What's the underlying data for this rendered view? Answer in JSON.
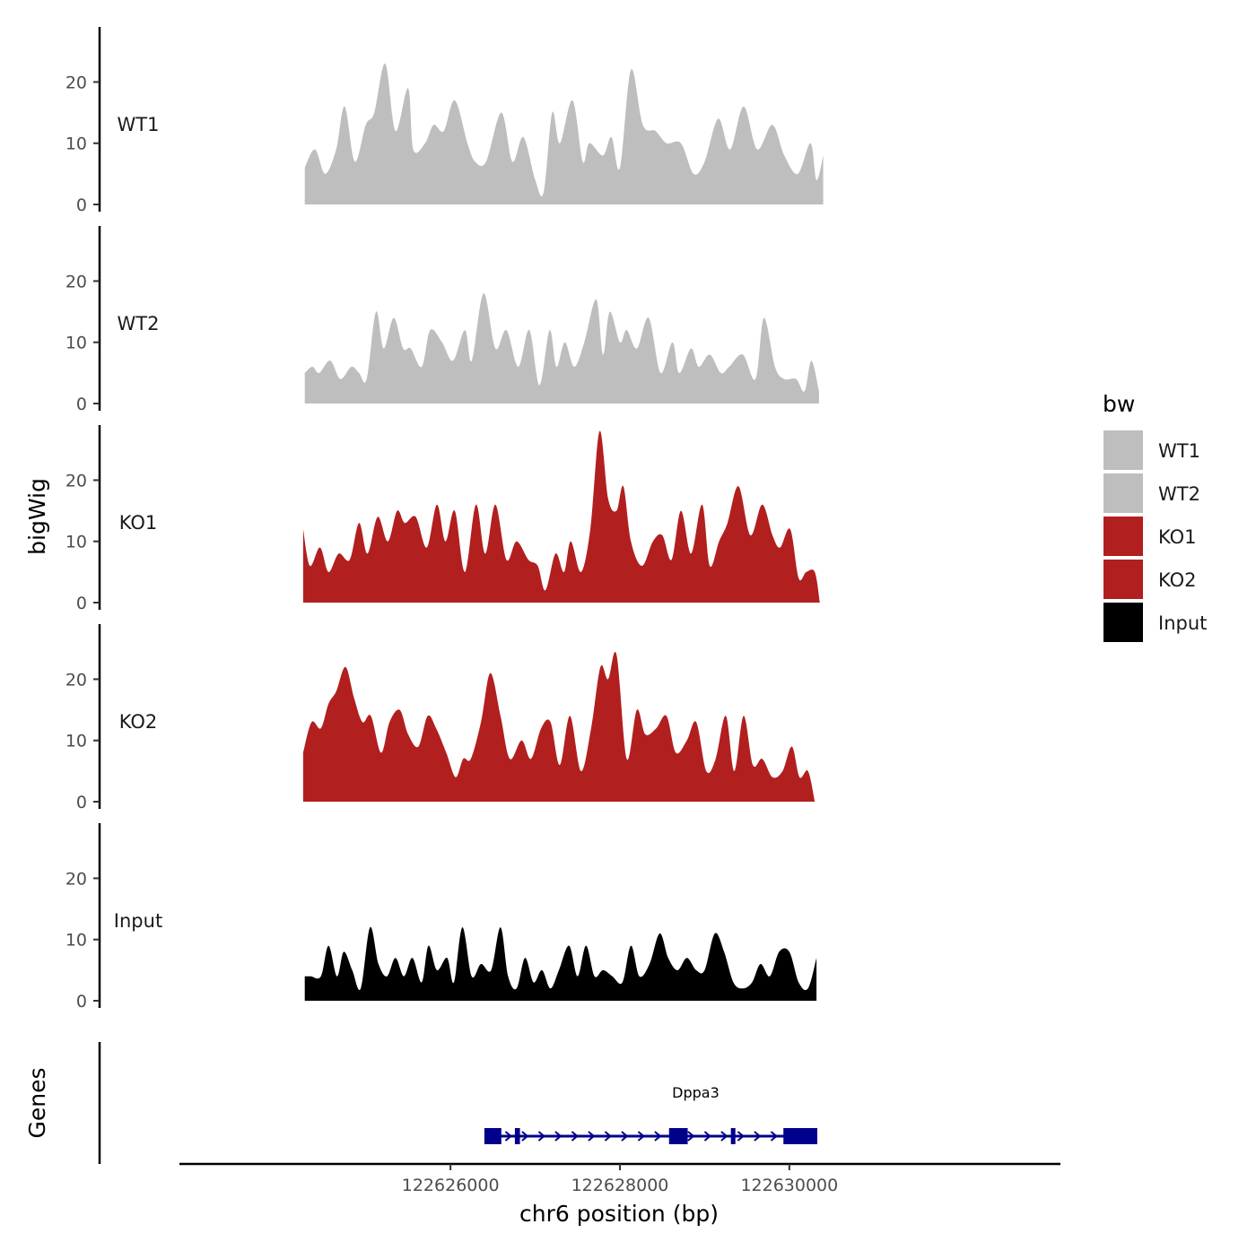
{
  "chart_data": {
    "type": "area",
    "title": "",
    "xlabel": "chr6 position (bp)",
    "ylabel": "bigWig",
    "genes_axis_label": "Genes",
    "xlim": [
      122622800,
      122633200
    ],
    "ylim": [
      0,
      29
    ],
    "x_ticks": [
      122626000,
      122628000,
      122630000
    ],
    "x_tick_labels": [
      "122626000",
      "122628000",
      "122630000"
    ],
    "y_ticks": [
      0,
      10,
      20
    ],
    "y_tick_labels": [
      "0",
      "10",
      "20"
    ],
    "legend": {
      "title": "bw",
      "placement": "right",
      "entries": [
        {
          "label": "WT1",
          "color": "#bebebe"
        },
        {
          "label": "WT2",
          "color": "#bebebe"
        },
        {
          "label": "KO1",
          "color": "#b21f1f"
        },
        {
          "label": "KO2",
          "color": "#b21f1f"
        },
        {
          "label": "Input",
          "color": "#000000"
        }
      ]
    },
    "series": [
      {
        "name": "WT1",
        "color": "#bebebe",
        "x": [
          122624280,
          122624400,
          122624520,
          122624650,
          122624750,
          122624870,
          122625000,
          122625100,
          122625230,
          122625350,
          122625500,
          122625560,
          122625700,
          122625800,
          122625920,
          122626050,
          122626200,
          122626290,
          122626420,
          122626600,
          122626730,
          122626860,
          122627000,
          122627100,
          122627200,
          122627290,
          122627440,
          122627560,
          122627640,
          122627800,
          122627900,
          122628000,
          122628130,
          122628270,
          122628420,
          122628550,
          122628720,
          122628870,
          122629000,
          122629160,
          122629300,
          122629460,
          122629620,
          122629800,
          122629940,
          122630100,
          122630250,
          122630320,
          122630400
        ],
        "values": [
          6,
          9,
          5,
          9,
          16,
          7,
          13,
          15,
          23,
          12,
          19,
          9,
          10,
          13,
          12,
          17,
          10,
          7,
          7,
          15,
          7,
          11,
          4,
          2,
          15,
          10,
          17,
          7,
          10,
          8,
          11,
          6,
          22,
          13,
          12,
          10,
          10,
          5,
          7,
          14,
          9,
          16,
          9,
          13,
          8,
          5,
          10,
          4,
          8
        ]
      },
      {
        "name": "WT2",
        "color": "#bebebe",
        "x": [
          122624280,
          122624370,
          122624450,
          122624580,
          122624700,
          122624830,
          122624920,
          122625010,
          122625120,
          122625210,
          122625330,
          122625440,
          122625530,
          122625660,
          122625760,
          122625900,
          122626030,
          122626170,
          122626250,
          122626390,
          122626530,
          122626660,
          122626800,
          122626930,
          122627050,
          122627170,
          122627250,
          122627350,
          122627460,
          122627580,
          122627720,
          122627800,
          122627880,
          122628000,
          122628080,
          122628200,
          122628340,
          122628480,
          122628620,
          122628700,
          122628840,
          122628930,
          122629060,
          122629190,
          122629290,
          122629450,
          122629600,
          122629700,
          122629830,
          122629940,
          122630080,
          122630180,
          122630260,
          122630350
        ],
        "values": [
          5,
          6,
          5,
          7,
          4,
          6,
          5,
          4,
          15,
          9,
          14,
          9,
          9,
          6,
          12,
          10,
          7,
          12,
          7,
          18,
          9,
          12,
          6,
          12,
          3,
          12,
          6,
          10,
          6,
          10,
          17,
          8,
          15,
          10,
          12,
          9,
          14,
          5,
          10,
          5,
          9,
          6,
          8,
          5,
          6,
          8,
          4,
          14,
          6,
          4,
          4,
          2,
          7,
          2
        ]
      },
      {
        "name": "KO1",
        "color": "#b21f1f",
        "x": [
          122624260,
          122624340,
          122624460,
          122624560,
          122624680,
          122624810,
          122624920,
          122625020,
          122625140,
          122625260,
          122625370,
          122625460,
          122625590,
          122625720,
          122625840,
          122625940,
          122626050,
          122626170,
          122626300,
          122626410,
          122626530,
          122626660,
          122626780,
          122626920,
          122627030,
          122627120,
          122627240,
          122627340,
          122627420,
          122627540,
          122627650,
          122627760,
          122627860,
          122627960,
          122628040,
          122628130,
          122628260,
          122628390,
          122628500,
          122628610,
          122628720,
          122628840,
          122628970,
          122629060,
          122629170,
          122629270,
          122629400,
          122629540,
          122629680,
          122629800,
          122629890,
          122630010,
          122630110,
          122630200,
          122630300,
          122630360
        ],
        "values": [
          12,
          6,
          9,
          5,
          8,
          7,
          13,
          8,
          14,
          10,
          15,
          13,
          14,
          9,
          16,
          10,
          15,
          5,
          16,
          8,
          16,
          7,
          10,
          7,
          6,
          2,
          8,
          5,
          10,
          5,
          12,
          28,
          17,
          15,
          19,
          10,
          6,
          10,
          11,
          7,
          15,
          8,
          16,
          6,
          10,
          13,
          19,
          11,
          16,
          11,
          9,
          12,
          4,
          5,
          5,
          0
        ]
      },
      {
        "name": "KO2",
        "color": "#b21f1f",
        "x": [
          122624260,
          122624360,
          122624470,
          122624560,
          122624650,
          122624760,
          122624860,
          122624960,
          122625060,
          122625180,
          122625280,
          122625400,
          122625500,
          122625620,
          122625730,
          122625830,
          122625950,
          122626060,
          122626150,
          122626240,
          122626360,
          122626470,
          122626590,
          122626700,
          122626840,
          122626950,
          122627070,
          122627180,
          122627290,
          122627410,
          122627540,
          122627660,
          122627770,
          122627860,
          122627960,
          122628080,
          122628200,
          122628300,
          122628430,
          122628550,
          122628660,
          122628790,
          122628900,
          122629020,
          122629130,
          122629250,
          122629350,
          122629460,
          122629570,
          122629680,
          122629800,
          122629920,
          122630030,
          122630120,
          122630220,
          122630300
        ],
        "values": [
          8,
          13,
          12,
          16,
          18,
          22,
          17,
          13,
          14,
          8,
          13,
          15,
          11,
          9,
          14,
          12,
          8,
          4,
          7,
          7,
          13,
          21,
          14,
          7,
          10,
          7,
          12,
          13,
          6,
          14,
          5,
          12,
          22,
          20,
          24,
          7,
          15,
          11,
          12,
          14,
          8,
          10,
          13,
          5,
          7,
          14,
          5,
          14,
          6,
          7,
          4,
          5,
          9,
          4,
          5,
          0
        ]
      },
      {
        "name": "Input",
        "color": "#000000",
        "x": [
          122624280,
          122624350,
          122624470,
          122624560,
          122624660,
          122624740,
          122624840,
          122624940,
          122625050,
          122625150,
          122625250,
          122625350,
          122625450,
          122625550,
          122625660,
          122625740,
          122625840,
          122625960,
          122626040,
          122626140,
          122626250,
          122626360,
          122626480,
          122626590,
          122626680,
          122626780,
          122626880,
          122626980,
          122627080,
          122627180,
          122627280,
          122627400,
          122627500,
          122627600,
          122627700,
          122627800,
          122627910,
          122628030,
          122628130,
          122628230,
          122628350,
          122628470,
          122628570,
          122628680,
          122628790,
          122628900,
          122629000,
          122629120,
          122629230,
          122629340,
          122629450,
          122629560,
          122629660,
          122629770,
          122629880,
          122630000,
          122630110,
          122630220,
          122630320
        ],
        "values": [
          4,
          4,
          4,
          9,
          4,
          8,
          5,
          2,
          12,
          6,
          4,
          7,
          4,
          7,
          3,
          9,
          5,
          7,
          3,
          12,
          4,
          6,
          5,
          12,
          4,
          2,
          7,
          3,
          5,
          2,
          5,
          9,
          4,
          9,
          4,
          5,
          4,
          3,
          9,
          4,
          6,
          11,
          7,
          5,
          7,
          5,
          5,
          11,
          8,
          3,
          2,
          3,
          6,
          4,
          8,
          8,
          3,
          2,
          7
        ]
      }
    ],
    "genes": [
      {
        "name": "Dppa3",
        "strand": "+",
        "start": 122626400,
        "end": 122630330,
        "exons": [
          [
            122626400,
            122626600
          ],
          [
            122626760,
            122626820
          ],
          [
            122628580,
            122628800
          ],
          [
            122629310,
            122629340
          ],
          [
            122629930,
            122630330
          ]
        ]
      }
    ]
  }
}
